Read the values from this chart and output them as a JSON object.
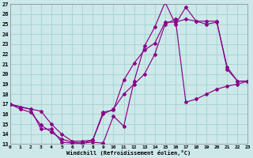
{
  "xlabel": "Windchill (Refroidissement éolien,°C)",
  "bg_color": "#cce8e8",
  "grid_color": "#aad4d4",
  "line_color": "#880088",
  "xlim": [
    0,
    23
  ],
  "ylim": [
    13,
    27
  ],
  "xticks": [
    0,
    1,
    2,
    3,
    4,
    5,
    6,
    7,
    8,
    9,
    10,
    11,
    12,
    13,
    14,
    15,
    16,
    17,
    18,
    19,
    20,
    21,
    22,
    23
  ],
  "yticks": [
    13,
    14,
    15,
    16,
    17,
    18,
    19,
    20,
    21,
    22,
    23,
    24,
    25,
    26,
    27
  ],
  "line1_x": [
    0,
    1,
    2,
    3,
    4,
    5,
    6,
    7,
    8,
    9,
    10,
    11,
    12,
    13,
    14,
    15,
    16,
    17,
    18,
    19,
    20,
    21,
    22,
    23
  ],
  "line1_y": [
    17.0,
    16.7,
    16.5,
    14.5,
    14.5,
    13.2,
    13.1,
    13.1,
    13.2,
    13.1,
    15.8,
    14.8,
    19.3,
    22.8,
    24.7,
    27.2,
    25.0,
    26.7,
    25.3,
    25.3,
    25.3,
    20.5,
    19.3,
    19.3
  ],
  "line2_x": [
    0,
    1,
    2,
    3,
    4,
    5,
    6,
    7,
    8,
    9,
    10,
    11,
    12,
    13,
    14,
    15,
    16,
    17,
    18,
    19,
    20,
    21,
    22,
    23
  ],
  "line2_y": [
    17.0,
    16.5,
    16.2,
    14.9,
    14.2,
    13.5,
    13.2,
    13.1,
    13.4,
    16.2,
    16.4,
    19.4,
    21.1,
    22.4,
    23.1,
    25.2,
    25.2,
    25.5,
    25.3,
    25.0,
    25.2,
    20.7,
    19.3,
    19.3
  ],
  "line3_x": [
    0,
    2,
    3,
    4,
    5,
    6,
    7,
    8,
    9,
    10,
    11,
    12,
    13,
    14,
    15,
    16,
    17,
    18,
    19,
    20,
    21,
    22,
    23
  ],
  "line3_y": [
    17.0,
    16.5,
    16.3,
    15.0,
    14.0,
    13.3,
    13.3,
    13.4,
    16.0,
    16.5,
    18.0,
    19.0,
    20.0,
    22.0,
    25.0,
    25.5,
    17.2,
    17.5,
    18.0,
    18.5,
    18.8,
    19.0,
    19.3
  ]
}
